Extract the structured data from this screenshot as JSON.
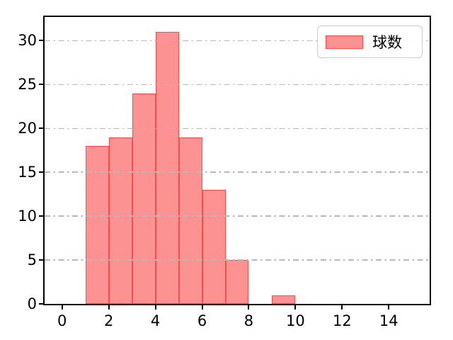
{
  "chart_data": {
    "type": "bar",
    "subtype": "histogram",
    "title": "",
    "xlabel": "",
    "ylabel": "",
    "bin_edges": [
      1,
      2,
      3,
      4,
      5,
      6,
      7,
      8,
      9,
      10
    ],
    "values": [
      18,
      19,
      24,
      31,
      19,
      13,
      5,
      0,
      1
    ],
    "series_name": "球数",
    "xticks": [
      0,
      2,
      4,
      6,
      8,
      10,
      12,
      14
    ],
    "yticks": [
      0,
      5,
      10,
      15,
      20,
      25,
      30
    ],
    "xlim": [
      -0.75,
      15.75
    ],
    "ylim": [
      0,
      32.7
    ],
    "grid": "horizontal, dash-dot, drawn above bars",
    "legend_position": "upper right",
    "colors": {
      "bar_fill": "#fc9292",
      "bar_edge": "#f44f4f",
      "grid_line": "#b9b9b9",
      "spine": "#000000",
      "legend_border": "#cccccc",
      "text": "#000000"
    }
  },
  "legend": {
    "label": "球数"
  }
}
